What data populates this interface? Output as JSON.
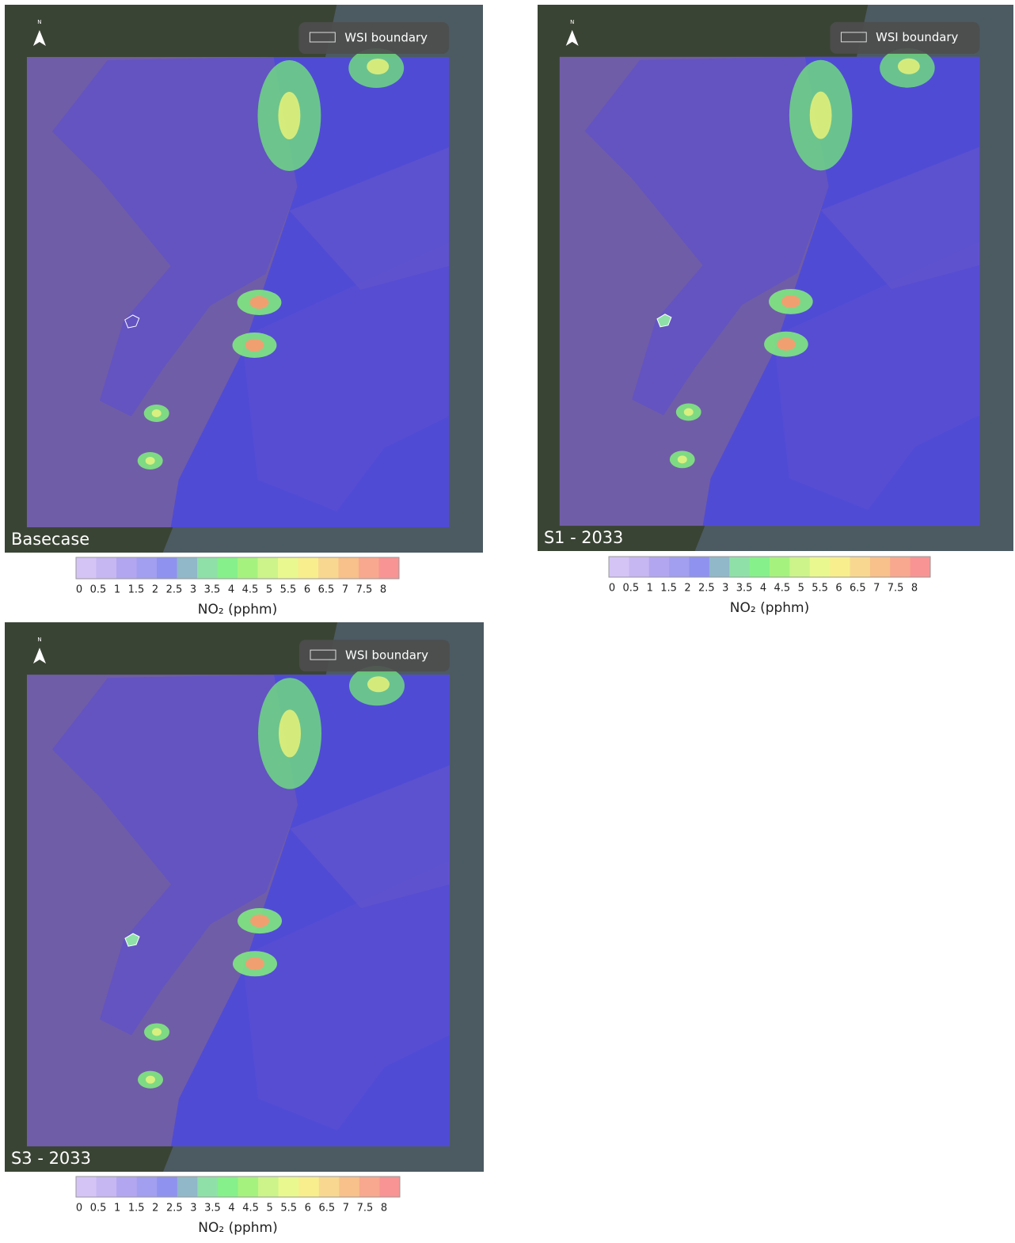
{
  "panels": [
    {
      "label": "Basecase"
    },
    {
      "label": "S1 - 2033"
    },
    {
      "label": "S3 - 2033"
    }
  ],
  "legend": {
    "boundary": "WSI boundary",
    "north": "N"
  },
  "colorbar": {
    "ticks": [
      0,
      0.5,
      1,
      1.5,
      2,
      2.5,
      3,
      3.5,
      4,
      4.5,
      5,
      5.5,
      6,
      6.5,
      7,
      7.5,
      8
    ],
    "colors": [
      "#d4c4f6",
      "#c6b6f2",
      "#b3a6f0",
      "#a29ff0",
      "#8f92ef",
      "#90b8c8",
      "#8fe0a8",
      "#86f08a",
      "#a6f27e",
      "#ccf48a",
      "#eaf890",
      "#f8ee8e",
      "#f8d890",
      "#f8c08a",
      "#f8a88e",
      "#f89494"
    ],
    "title": "NO₂ (pphm)"
  }
}
